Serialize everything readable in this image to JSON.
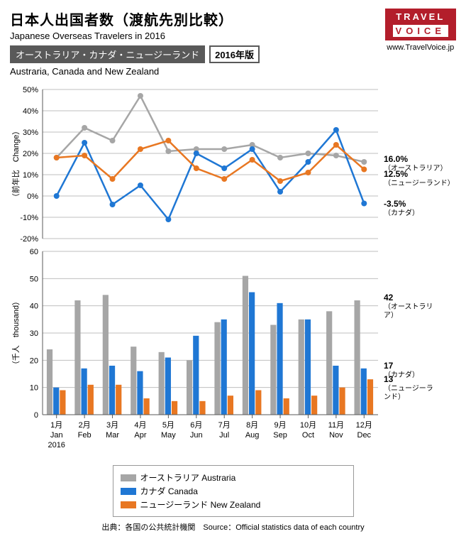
{
  "header": {
    "title_jp": "日本人出国者数（渡航先別比較）",
    "title_en": "Japanese Overseas Travelers in 2016",
    "logo_top": "TRAVEL",
    "logo_bottom": "VOICE",
    "logo_url": "www.TravelVoice.jp",
    "subtitle_jp": "オーストラリア・カナダ・ニュージーランド",
    "subtitle_year": "2016年版",
    "subtitle_en": "Austraria, Canada and New Zealand"
  },
  "colors": {
    "australia": "#a6a6a6",
    "canada": "#1f77d4",
    "newzealand": "#e87722",
    "grid": "#bfbfbf",
    "axis": "#595959",
    "text": "#000000"
  },
  "months": {
    "jp": [
      "1月",
      "2月",
      "3月",
      "4月",
      "5月",
      "6月",
      "7月",
      "8月",
      "9月",
      "10月",
      "11月",
      "12月"
    ],
    "en": [
      "Jan",
      "Feb",
      "Mar",
      "Apr",
      "May",
      "Jun",
      "Jul",
      "Aug",
      "Sep",
      "Oct",
      "Nov",
      "Dec"
    ],
    "year": "2016"
  },
  "line_chart": {
    "ylabel": "（前年比　Change）",
    "ylim": [
      -20,
      50
    ],
    "ytick_step": 10,
    "series": {
      "australia": [
        18,
        32,
        26,
        47,
        21,
        22,
        22,
        24,
        18,
        20,
        19,
        16
      ],
      "canada": [
        0,
        25,
        -4,
        5,
        -11,
        20,
        13,
        22,
        2,
        16,
        31,
        -3.5
      ],
      "newzealand": [
        18,
        19,
        8,
        22,
        26,
        13,
        8,
        17,
        7,
        11,
        24,
        12.5
      ]
    },
    "end_labels": [
      {
        "key": "australia",
        "value": "16.0%",
        "name": "（オーストラリア）"
      },
      {
        "key": "newzealand",
        "value": "12.5%",
        "name": "（ニュージーランド）"
      },
      {
        "key": "canada",
        "value": "-3.5%",
        "name": "（カナダ）"
      }
    ],
    "line_width": 2.5,
    "marker_r": 4
  },
  "bar_chart": {
    "ylabel": "（千人　thousand）",
    "ylim": [
      0,
      60
    ],
    "ytick_step": 10,
    "series": {
      "australia": [
        24,
        42,
        44,
        25,
        23,
        20,
        34,
        51,
        33,
        35,
        38,
        42
      ],
      "canada": [
        10,
        17,
        18,
        16,
        21,
        29,
        35,
        45,
        41,
        35,
        18,
        17
      ],
      "newzealand": [
        9,
        11,
        11,
        6,
        5,
        5,
        7,
        9,
        6,
        7,
        10,
        13
      ]
    },
    "end_labels": [
      {
        "key": "australia",
        "value": "42",
        "name": "（オーストラリア）"
      },
      {
        "key": "canada",
        "value": "17",
        "name": "（カナダ）"
      },
      {
        "key": "newzealand",
        "value": "13",
        "name": "（ニュージーランド）"
      }
    ],
    "bar_group_width": 0.7
  },
  "legend": {
    "items": [
      {
        "key": "australia",
        "label": "オーストラリア Austraria"
      },
      {
        "key": "canada",
        "label": "カナダ Canada"
      },
      {
        "key": "newzealand",
        "label": "ニュージーランド New Zealand"
      }
    ]
  },
  "source": "出典：各国の公共統計機関　Source：Official statistics data of each country"
}
